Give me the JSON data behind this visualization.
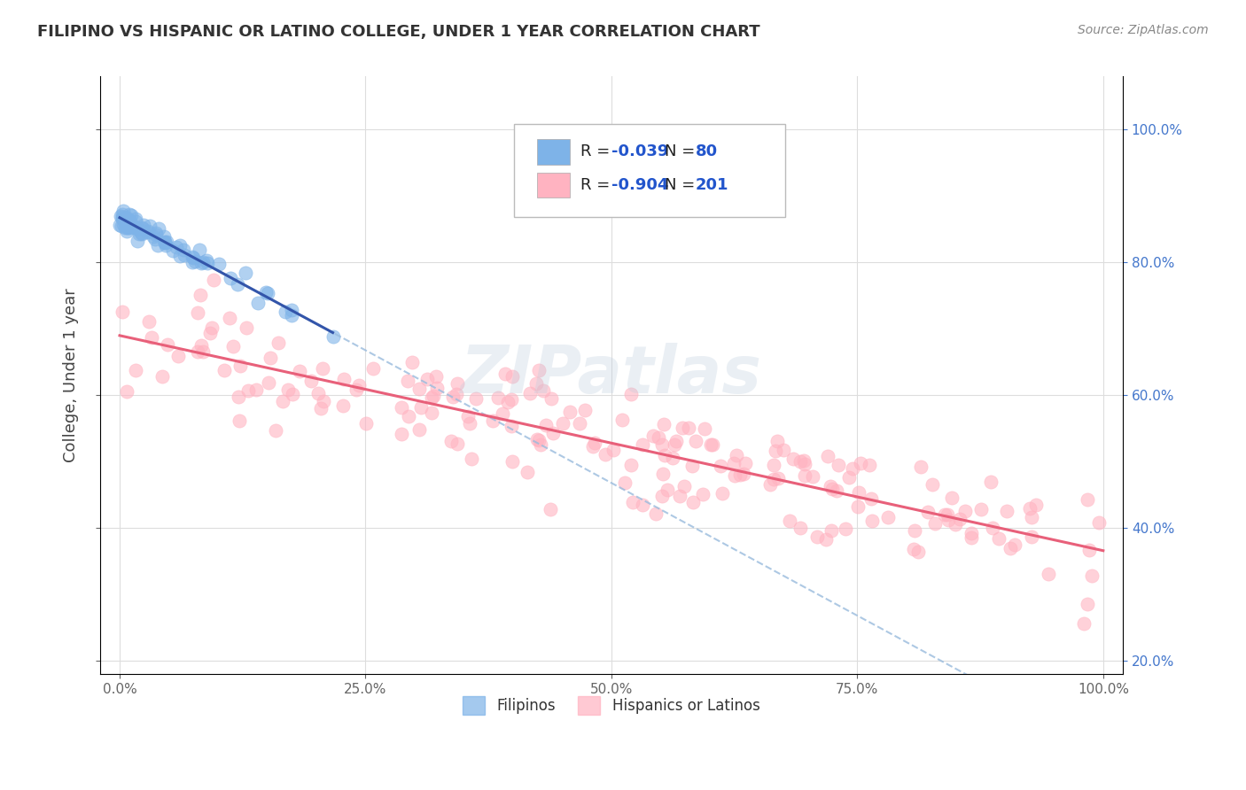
{
  "title": "FILIPINO VS HISPANIC OR LATINO COLLEGE, UNDER 1 YEAR CORRELATION CHART",
  "source": "Source: ZipAtlas.com",
  "ylabel": "College, Under 1 year",
  "legend_line1": {
    "R": "-0.039",
    "N": "80"
  },
  "legend_line2": {
    "R": "-0.904",
    "N": "201"
  },
  "filipino_color": "#7EB3E8",
  "hispanic_color": "#FFB3C1",
  "blue_line_color": "#3355AA",
  "pink_line_color": "#E8607A",
  "blue_dashed_color": "#99BBDD",
  "background_color": "#FFFFFF",
  "grid_color": "#DDDDDD",
  "watermark": "ZIPatlas",
  "filipinos_seed": 42,
  "hispanics_seed": 123,
  "n_filipinos": 80,
  "n_hispanics": 201,
  "R_filipinos": -0.039,
  "R_hispanics": -0.904
}
